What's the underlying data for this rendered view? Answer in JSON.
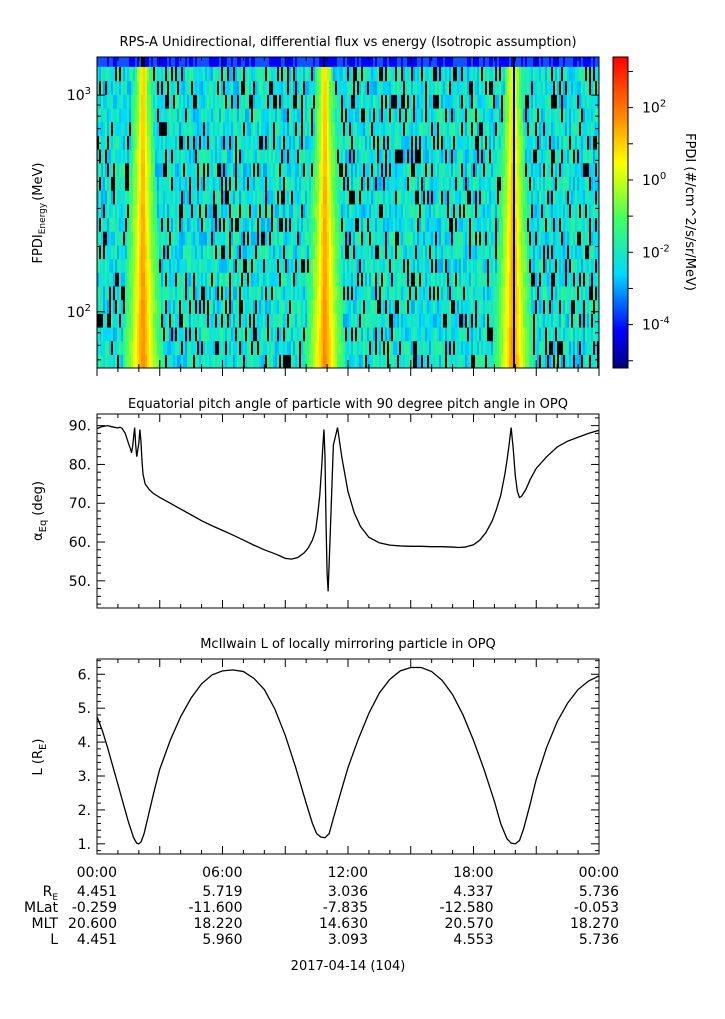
{
  "chart_data": [
    {
      "type": "heatmap",
      "title": "RPS-A Unidirectional, differential flux vs energy (Isotropic assumption)",
      "ylabel_main": "FPDI",
      "ylabel_sub": "Energy",
      "ylabel_unit": "(MeV)",
      "yscale": "log",
      "ylim": [
        55,
        1500
      ],
      "yticks": [
        {
          "value": 100,
          "label": "10",
          "exp": "2"
        },
        {
          "value": 1000,
          "label": "10",
          "exp": "3"
        }
      ],
      "xlim_hours": [
        0,
        24
      ],
      "x_peaks_hours": [
        2.15,
        10.85,
        19.85
      ],
      "colorbar": {
        "label": "FPDI (#/cm^2/s/sr/MeV)",
        "scale": "log",
        "range_exp": [
          -5.2,
          3.4
        ],
        "ticks": [
          {
            "exp": -4,
            "label": "10",
            "sup": "-4"
          },
          {
            "exp": -2,
            "label": "10",
            "sup": "-2"
          },
          {
            "exp": 0,
            "label": "10",
            "sup": "0"
          },
          {
            "exp": 2,
            "label": "10",
            "sup": "2"
          }
        ]
      }
    },
    {
      "type": "line",
      "title": "Equatorial pitch angle of particle with 90 degree pitch angle in OPQ",
      "ylabel_main": "α",
      "ylabel_sub": "Eq",
      "ylabel_unit": "(deg)",
      "ylim": [
        43,
        93
      ],
      "yticks": [
        50,
        60,
        70,
        80,
        90
      ],
      "ytick_labels": [
        "50.",
        "60.",
        "70.",
        "80.",
        "90."
      ],
      "series": [
        {
          "x": [
            0,
            0.2,
            0.5,
            0.8,
            1.0,
            1.1,
            1.2,
            1.35,
            1.5,
            1.6,
            1.65,
            1.7,
            1.75,
            1.8,
            1.85,
            1.9,
            2.0,
            2.05,
            2.1,
            2.15,
            2.2,
            2.3,
            2.5,
            2.7,
            3.0,
            3.5,
            4.0,
            4.5,
            5.0,
            5.5,
            6.0,
            6.5,
            7.0,
            7.5,
            8.0,
            8.5,
            8.8,
            9.0,
            9.3,
            9.6,
            9.9,
            10.1,
            10.3,
            10.45,
            10.55,
            10.65,
            10.75,
            10.8,
            10.85,
            10.9,
            10.95,
            11.0,
            11.05,
            11.15,
            11.3,
            11.5,
            11.7,
            12.0,
            12.3,
            12.6,
            13.0,
            13.5,
            14.0,
            14.5,
            15.0,
            15.5,
            16.0,
            16.5,
            17.0,
            17.3,
            17.6,
            18.0,
            18.3,
            18.6,
            18.9,
            19.1,
            19.3,
            19.5,
            19.6,
            19.7,
            19.8,
            19.9,
            20.0,
            20.1,
            20.2,
            20.3,
            20.5,
            20.7,
            21.0,
            21.5,
            22.0,
            22.5,
            23.0,
            23.5,
            24.0
          ],
          "y": [
            89.2,
            89.7,
            90.0,
            89.6,
            89.4,
            89.6,
            89.3,
            88.0,
            85.5,
            84.0,
            83.0,
            84.5,
            87.0,
            89.5,
            85.0,
            82.0,
            85.5,
            89.0,
            86.0,
            81.0,
            77.5,
            75.0,
            73.5,
            72.5,
            71.5,
            70.0,
            68.5,
            67.0,
            65.5,
            64.2,
            63.0,
            61.8,
            60.5,
            59.2,
            58.0,
            57.0,
            56.3,
            55.8,
            55.6,
            56.0,
            57.2,
            58.5,
            60.5,
            63.0,
            67.0,
            72.0,
            80.0,
            85.0,
            89.0,
            82.0,
            65.0,
            52.0,
            47.3,
            62.0,
            85.0,
            89.5,
            82.0,
            73.0,
            67.5,
            64.0,
            61.2,
            59.8,
            59.2,
            59.0,
            58.9,
            58.9,
            58.8,
            58.8,
            58.7,
            58.6,
            58.7,
            59.3,
            60.5,
            62.5,
            65.5,
            68.5,
            72.0,
            77.5,
            81.0,
            85.0,
            89.5,
            84.0,
            77.0,
            73.0,
            71.5,
            71.8,
            73.5,
            76.0,
            79.0,
            82.0,
            84.5,
            86.0,
            87.0,
            88.0,
            88.8
          ]
        }
      ]
    },
    {
      "type": "line",
      "title": "McIlwain L of locally mirroring particle in OPQ",
      "ylabel_main": "L (R",
      "ylabel_sub": "E",
      "ylabel_unit": ")",
      "ylim": [
        0.7,
        6.45
      ],
      "yticks": [
        1,
        2,
        3,
        4,
        5,
        6
      ],
      "ytick_labels": [
        "1.",
        "2.",
        "3.",
        "4.",
        "5.",
        "6."
      ],
      "series": [
        {
          "x": [
            0,
            0.25,
            0.5,
            0.75,
            1.0,
            1.25,
            1.5,
            1.75,
            1.9,
            2.0,
            2.1,
            2.25,
            2.5,
            2.75,
            3.0,
            3.5,
            4.0,
            4.5,
            5.0,
            5.5,
            6.0,
            6.5,
            7.0,
            7.5,
            8.0,
            8.5,
            9.0,
            9.5,
            10.0,
            10.3,
            10.5,
            10.7,
            10.9,
            11.1,
            11.3,
            11.6,
            12.0,
            12.5,
            13.0,
            13.5,
            14.0,
            14.5,
            15.0,
            15.5,
            16.0,
            16.5,
            17.0,
            17.5,
            18.0,
            18.5,
            19.0,
            19.3,
            19.6,
            19.8,
            20.0,
            20.2,
            20.4,
            20.7,
            21.0,
            21.5,
            22.0,
            22.5,
            23.0,
            23.5,
            24.0
          ],
          "y": [
            4.75,
            4.35,
            3.85,
            3.3,
            2.75,
            2.2,
            1.65,
            1.18,
            1.02,
            1.0,
            1.05,
            1.3,
            1.95,
            2.6,
            3.2,
            4.05,
            4.75,
            5.3,
            5.72,
            5.98,
            6.1,
            6.13,
            6.08,
            5.88,
            5.55,
            4.98,
            4.2,
            3.25,
            2.2,
            1.6,
            1.3,
            1.2,
            1.18,
            1.3,
            1.75,
            2.4,
            3.25,
            4.1,
            4.85,
            5.45,
            5.85,
            6.1,
            6.2,
            6.2,
            6.08,
            5.82,
            5.4,
            4.8,
            4.05,
            3.2,
            2.25,
            1.6,
            1.15,
            1.02,
            1.0,
            1.1,
            1.45,
            2.15,
            2.9,
            3.85,
            4.6,
            5.15,
            5.55,
            5.8,
            5.95
          ]
        }
      ]
    }
  ],
  "xaxis": {
    "tick_labels": [
      "00:00",
      "06:00",
      "12:00",
      "18:00",
      "00:00"
    ],
    "date_label": "2017-04-14 (104)"
  },
  "ephemeris": {
    "rows": [
      {
        "label": "R",
        "label_sub": "E",
        "values": [
          "4.451",
          "5.719",
          "3.036",
          "4.337",
          "5.736"
        ]
      },
      {
        "label": "MLat",
        "label_sub": "",
        "values": [
          "-0.259",
          "-11.600",
          "-7.835",
          "-12.580",
          "-0.053"
        ]
      },
      {
        "label": "MLT",
        "label_sub": "",
        "values": [
          "20.600",
          "18.220",
          "14.630",
          "20.570",
          "18.270"
        ]
      },
      {
        "label": "L",
        "label_sub": "",
        "values": [
          "4.451",
          "5.960",
          "3.093",
          "4.553",
          "5.736"
        ]
      }
    ]
  }
}
